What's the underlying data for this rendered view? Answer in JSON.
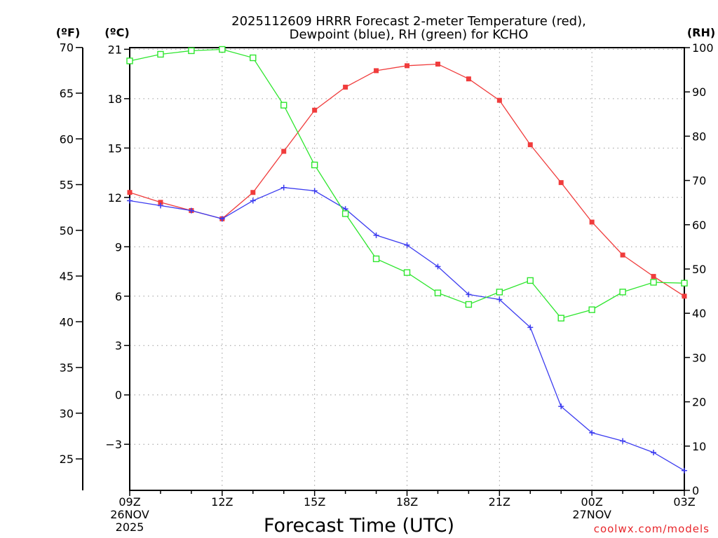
{
  "chart_data": {
    "type": "line",
    "title": [
      "2025112609 HRRR Forecast 2-meter Temperature (red),",
      "Dewpoint (blue), RH (green) for KCHO"
    ],
    "xlabel": "Forecast Time (UTC)",
    "credit": "coolwx.com/models",
    "units": {
      "fahrenheit": "(ºF)",
      "celsius": "(ºC)",
      "rh": "(RH)"
    },
    "x_hours": [
      0,
      1,
      2,
      3,
      4,
      5,
      6,
      7,
      8,
      9,
      10,
      11,
      12,
      13,
      14,
      15,
      16,
      17,
      18
    ],
    "x_ticks": [
      {
        "hour": 0,
        "lines": [
          "09Z",
          "26NOV",
          "2025"
        ]
      },
      {
        "hour": 3,
        "lines": [
          "12Z"
        ]
      },
      {
        "hour": 6,
        "lines": [
          "15Z"
        ]
      },
      {
        "hour": 9,
        "lines": [
          "18Z"
        ]
      },
      {
        "hour": 12,
        "lines": [
          "21Z"
        ]
      },
      {
        "hour": 15,
        "lines": [
          "00Z",
          "27NOV"
        ]
      },
      {
        "hour": 18,
        "lines": [
          "03Z"
        ]
      }
    ],
    "celsius_axis": {
      "min": -5.8,
      "max": 21.1,
      "ticks": [
        "21",
        "18",
        "15",
        "12",
        "9",
        "6",
        "3",
        "0",
        "−3"
      ],
      "tick_values": [
        21,
        18,
        15,
        12,
        9,
        6,
        3,
        0,
        -3
      ]
    },
    "fahrenheit_axis": {
      "ticks": [
        "70",
        "65",
        "60",
        "55",
        "50",
        "45",
        "40",
        "35",
        "30",
        "25"
      ],
      "tick_values": [
        70,
        65,
        60,
        55,
        50,
        45,
        40,
        35,
        30,
        25
      ]
    },
    "rh_axis": {
      "min": 0,
      "max": 100,
      "ticks": [
        "100",
        "90",
        "80",
        "70",
        "60",
        "50",
        "40",
        "30",
        "20",
        "10",
        "0"
      ],
      "tick_values": [
        100,
        90,
        80,
        70,
        60,
        50,
        40,
        30,
        20,
        10,
        0
      ]
    },
    "series": [
      {
        "name": "Temperature",
        "units": "C",
        "axis": "celsius",
        "color": "#f03c3c",
        "marker": "filled-square",
        "values": [
          12.3,
          11.7,
          11.2,
          10.7,
          12.3,
          14.8,
          17.3,
          18.7,
          19.7,
          20.0,
          20.1,
          19.2,
          17.9,
          15.2,
          12.9,
          10.5,
          8.5,
          7.2,
          6.0
        ]
      },
      {
        "name": "Dewpoint",
        "units": "C",
        "axis": "celsius",
        "color": "#3c3cf0",
        "marker": "plus",
        "values": [
          11.8,
          11.5,
          11.2,
          10.7,
          11.8,
          12.6,
          12.4,
          11.3,
          9.7,
          9.1,
          7.8,
          6.1,
          5.8,
          4.1,
          -0.7,
          -2.3,
          -2.8,
          -3.5,
          -4.6
        ]
      },
      {
        "name": "RH",
        "units": "%",
        "axis": "rh",
        "color": "#2ee62e",
        "marker": "open-square",
        "values": [
          97.0,
          98.5,
          99.3,
          99.6,
          97.7,
          87.0,
          73.5,
          62.5,
          52.3,
          49.2,
          44.6,
          42.0,
          44.8,
          47.4,
          38.9,
          40.8,
          44.8,
          47.0,
          46.8
        ]
      }
    ]
  }
}
